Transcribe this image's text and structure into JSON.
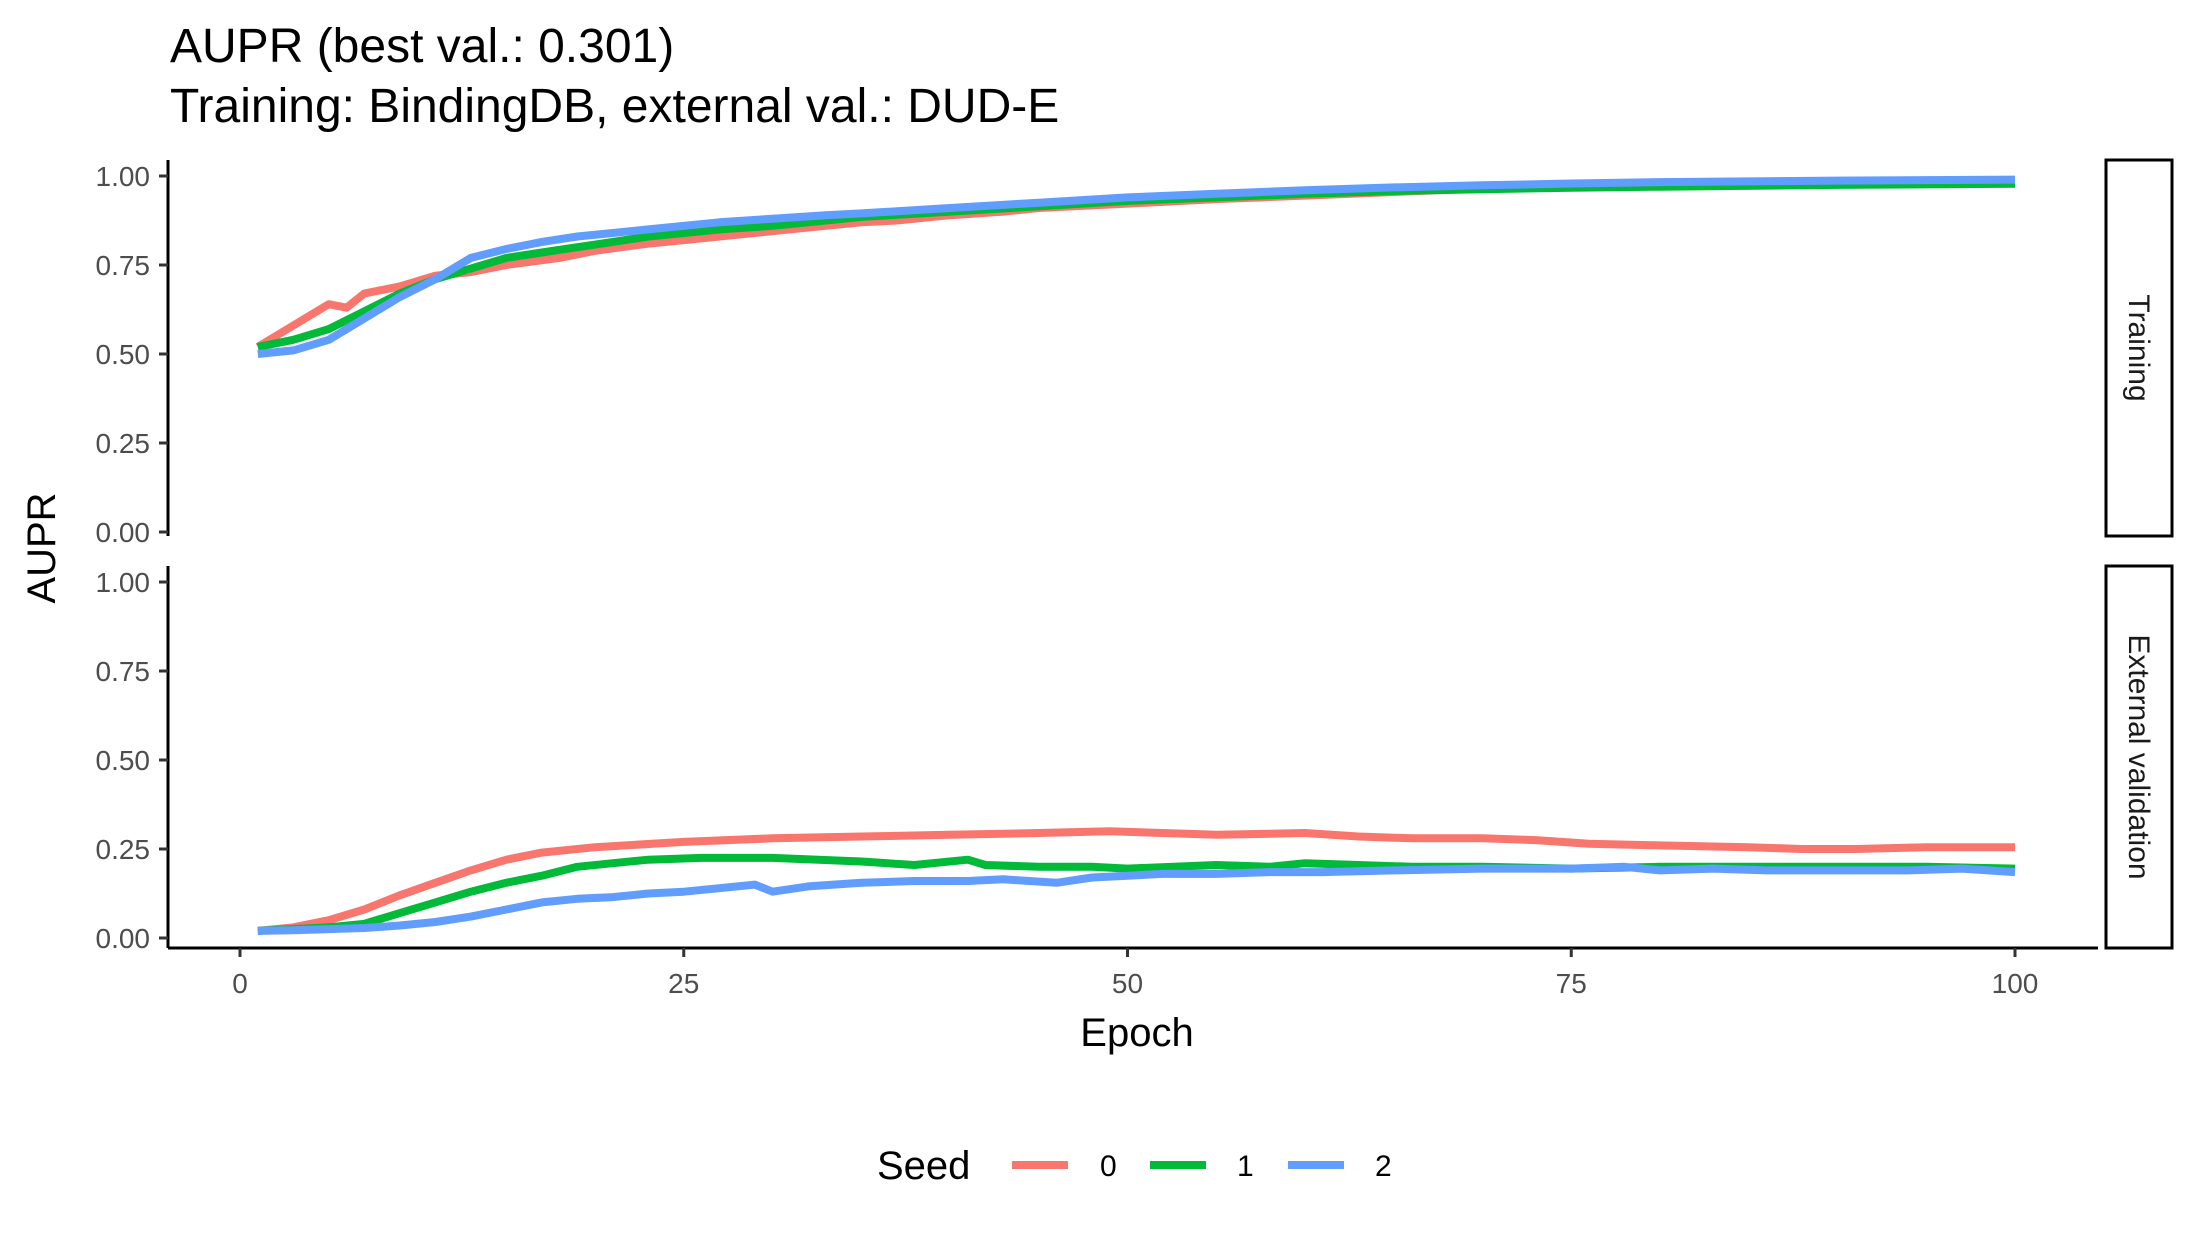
{
  "colors": {
    "seed_0": "#F8766D",
    "seed_1": "#00BA38",
    "seed_2": "#619CFF"
  },
  "chart_data": {
    "type": "line",
    "title": "AUPR (best val.: 0.301)",
    "subtitle": "Training: BindingDB, external val.: DUD-E",
    "xlabel": "Epoch",
    "ylabel": "AUPR",
    "xlim": [
      0,
      100
    ],
    "ylim": [
      0,
      1
    ],
    "x_ticks": [
      "0",
      "25",
      "50",
      "75",
      "100"
    ],
    "y_ticks": [
      "0.00",
      "0.25",
      "0.50",
      "0.75",
      "1.00"
    ],
    "grid": false,
    "legend": {
      "title": "Seed",
      "position": "bottom",
      "entries": [
        "0",
        "1",
        "2"
      ]
    },
    "facets": [
      {
        "label": "Training",
        "series": [
          {
            "name": "0",
            "color": "#F8766D",
            "points": [
              [
                1,
                0.52
              ],
              [
                3,
                0.58
              ],
              [
                5,
                0.64
              ],
              [
                6,
                0.63
              ],
              [
                7,
                0.67
              ],
              [
                9,
                0.69
              ],
              [
                11,
                0.72
              ],
              [
                13,
                0.73
              ],
              [
                15,
                0.75
              ],
              [
                18,
                0.77
              ],
              [
                20,
                0.79
              ],
              [
                23,
                0.81
              ],
              [
                25,
                0.82
              ],
              [
                27,
                0.83
              ],
              [
                30,
                0.845
              ],
              [
                33,
                0.86
              ],
              [
                35,
                0.87
              ],
              [
                37,
                0.875
              ],
              [
                40,
                0.89
              ],
              [
                43,
                0.9
              ],
              [
                45,
                0.91
              ],
              [
                47,
                0.915
              ],
              [
                49,
                0.92
              ],
              [
                51,
                0.925
              ],
              [
                55,
                0.935
              ],
              [
                60,
                0.945
              ],
              [
                65,
                0.955
              ],
              [
                70,
                0.965
              ],
              [
                75,
                0.97
              ],
              [
                80,
                0.975
              ],
              [
                90,
                0.98
              ],
              [
                100,
                0.98
              ]
            ]
          },
          {
            "name": "1",
            "color": "#00BA38",
            "points": [
              [
                1,
                0.52
              ],
              [
                3,
                0.54
              ],
              [
                5,
                0.57
              ],
              [
                7,
                0.62
              ],
              [
                9,
                0.67
              ],
              [
                11,
                0.71
              ],
              [
                13,
                0.74
              ],
              [
                15,
                0.77
              ],
              [
                17,
                0.785
              ],
              [
                19,
                0.8
              ],
              [
                21,
                0.815
              ],
              [
                23,
                0.83
              ],
              [
                25,
                0.84
              ],
              [
                27,
                0.85
              ],
              [
                30,
                0.86
              ],
              [
                33,
                0.875
              ],
              [
                35,
                0.885
              ],
              [
                40,
                0.9
              ],
              [
                45,
                0.915
              ],
              [
                50,
                0.93
              ],
              [
                55,
                0.94
              ],
              [
                60,
                0.95
              ],
              [
                65,
                0.958
              ],
              [
                70,
                0.963
              ],
              [
                75,
                0.967
              ],
              [
                80,
                0.97
              ],
              [
                90,
                0.975
              ],
              [
                100,
                0.978
              ]
            ]
          },
          {
            "name": "2",
            "color": "#619CFF",
            "points": [
              [
                1,
                0.5
              ],
              [
                3,
                0.51
              ],
              [
                5,
                0.54
              ],
              [
                7,
                0.6
              ],
              [
                9,
                0.66
              ],
              [
                11,
                0.71
              ],
              [
                13,
                0.77
              ],
              [
                15,
                0.795
              ],
              [
                17,
                0.815
              ],
              [
                19,
                0.83
              ],
              [
                21,
                0.84
              ],
              [
                23,
                0.85
              ],
              [
                25,
                0.86
              ],
              [
                27,
                0.87
              ],
              [
                30,
                0.88
              ],
              [
                33,
                0.89
              ],
              [
                35,
                0.895
              ],
              [
                40,
                0.91
              ],
              [
                45,
                0.925
              ],
              [
                50,
                0.94
              ],
              [
                55,
                0.95
              ],
              [
                60,
                0.96
              ],
              [
                65,
                0.968
              ],
              [
                70,
                0.974
              ],
              [
                75,
                0.979
              ],
              [
                80,
                0.983
              ],
              [
                90,
                0.987
              ],
              [
                100,
                0.99
              ]
            ]
          }
        ]
      },
      {
        "label": "External validation",
        "series": [
          {
            "name": "0",
            "color": "#F8766D",
            "points": [
              [
                1,
                0.02
              ],
              [
                3,
                0.03
              ],
              [
                5,
                0.05
              ],
              [
                7,
                0.08
              ],
              [
                9,
                0.12
              ],
              [
                11,
                0.155
              ],
              [
                13,
                0.19
              ],
              [
                15,
                0.22
              ],
              [
                17,
                0.24
              ],
              [
                20,
                0.255
              ],
              [
                25,
                0.27
              ],
              [
                30,
                0.28
              ],
              [
                35,
                0.285
              ],
              [
                40,
                0.29
              ],
              [
                45,
                0.295
              ],
              [
                49,
                0.3
              ],
              [
                52,
                0.295
              ],
              [
                55,
                0.29
              ],
              [
                60,
                0.295
              ],
              [
                63,
                0.285
              ],
              [
                66,
                0.28
              ],
              [
                70,
                0.28
              ],
              [
                73,
                0.275
              ],
              [
                76,
                0.265
              ],
              [
                80,
                0.26
              ],
              [
                85,
                0.255
              ],
              [
                88,
                0.25
              ],
              [
                91,
                0.25
              ],
              [
                95,
                0.255
              ],
              [
                100,
                0.255
              ]
            ]
          },
          {
            "name": "1",
            "color": "#00BA38",
            "points": [
              [
                1,
                0.02
              ],
              [
                3,
                0.025
              ],
              [
                5,
                0.03
              ],
              [
                7,
                0.04
              ],
              [
                9,
                0.07
              ],
              [
                11,
                0.1
              ],
              [
                13,
                0.13
              ],
              [
                15,
                0.155
              ],
              [
                17,
                0.175
              ],
              [
                19,
                0.2
              ],
              [
                21,
                0.21
              ],
              [
                23,
                0.22
              ],
              [
                26,
                0.225
              ],
              [
                30,
                0.225
              ],
              [
                35,
                0.215
              ],
              [
                38,
                0.205
              ],
              [
                41,
                0.22
              ],
              [
                42,
                0.205
              ],
              [
                45,
                0.2
              ],
              [
                48,
                0.2
              ],
              [
                50,
                0.195
              ],
              [
                55,
                0.205
              ],
              [
                58,
                0.2
              ],
              [
                60,
                0.21
              ],
              [
                63,
                0.205
              ],
              [
                66,
                0.2
              ],
              [
                70,
                0.2
              ],
              [
                75,
                0.195
              ],
              [
                80,
                0.2
              ],
              [
                85,
                0.2
              ],
              [
                90,
                0.2
              ],
              [
                95,
                0.2
              ],
              [
                100,
                0.195
              ]
            ]
          },
          {
            "name": "2",
            "color": "#619CFF",
            "points": [
              [
                1,
                0.02
              ],
              [
                3,
                0.022
              ],
              [
                5,
                0.025
              ],
              [
                7,
                0.028
              ],
              [
                9,
                0.035
              ],
              [
                11,
                0.045
              ],
              [
                13,
                0.06
              ],
              [
                15,
                0.08
              ],
              [
                17,
                0.1
              ],
              [
                19,
                0.11
              ],
              [
                21,
                0.115
              ],
              [
                23,
                0.125
              ],
              [
                25,
                0.13
              ],
              [
                27,
                0.14
              ],
              [
                29,
                0.15
              ],
              [
                30,
                0.13
              ],
              [
                32,
                0.145
              ],
              [
                35,
                0.155
              ],
              [
                38,
                0.16
              ],
              [
                41,
                0.16
              ],
              [
                43,
                0.165
              ],
              [
                46,
                0.155
              ],
              [
                48,
                0.17
              ],
              [
                50,
                0.175
              ],
              [
                52,
                0.18
              ],
              [
                55,
                0.18
              ],
              [
                58,
                0.185
              ],
              [
                61,
                0.185
              ],
              [
                65,
                0.19
              ],
              [
                70,
                0.195
              ],
              [
                75,
                0.195
              ],
              [
                78,
                0.2
              ],
              [
                80,
                0.19
              ],
              [
                83,
                0.195
              ],
              [
                86,
                0.19
              ],
              [
                90,
                0.19
              ],
              [
                94,
                0.19
              ],
              [
                97,
                0.195
              ],
              [
                100,
                0.185
              ]
            ]
          }
        ]
      }
    ]
  }
}
